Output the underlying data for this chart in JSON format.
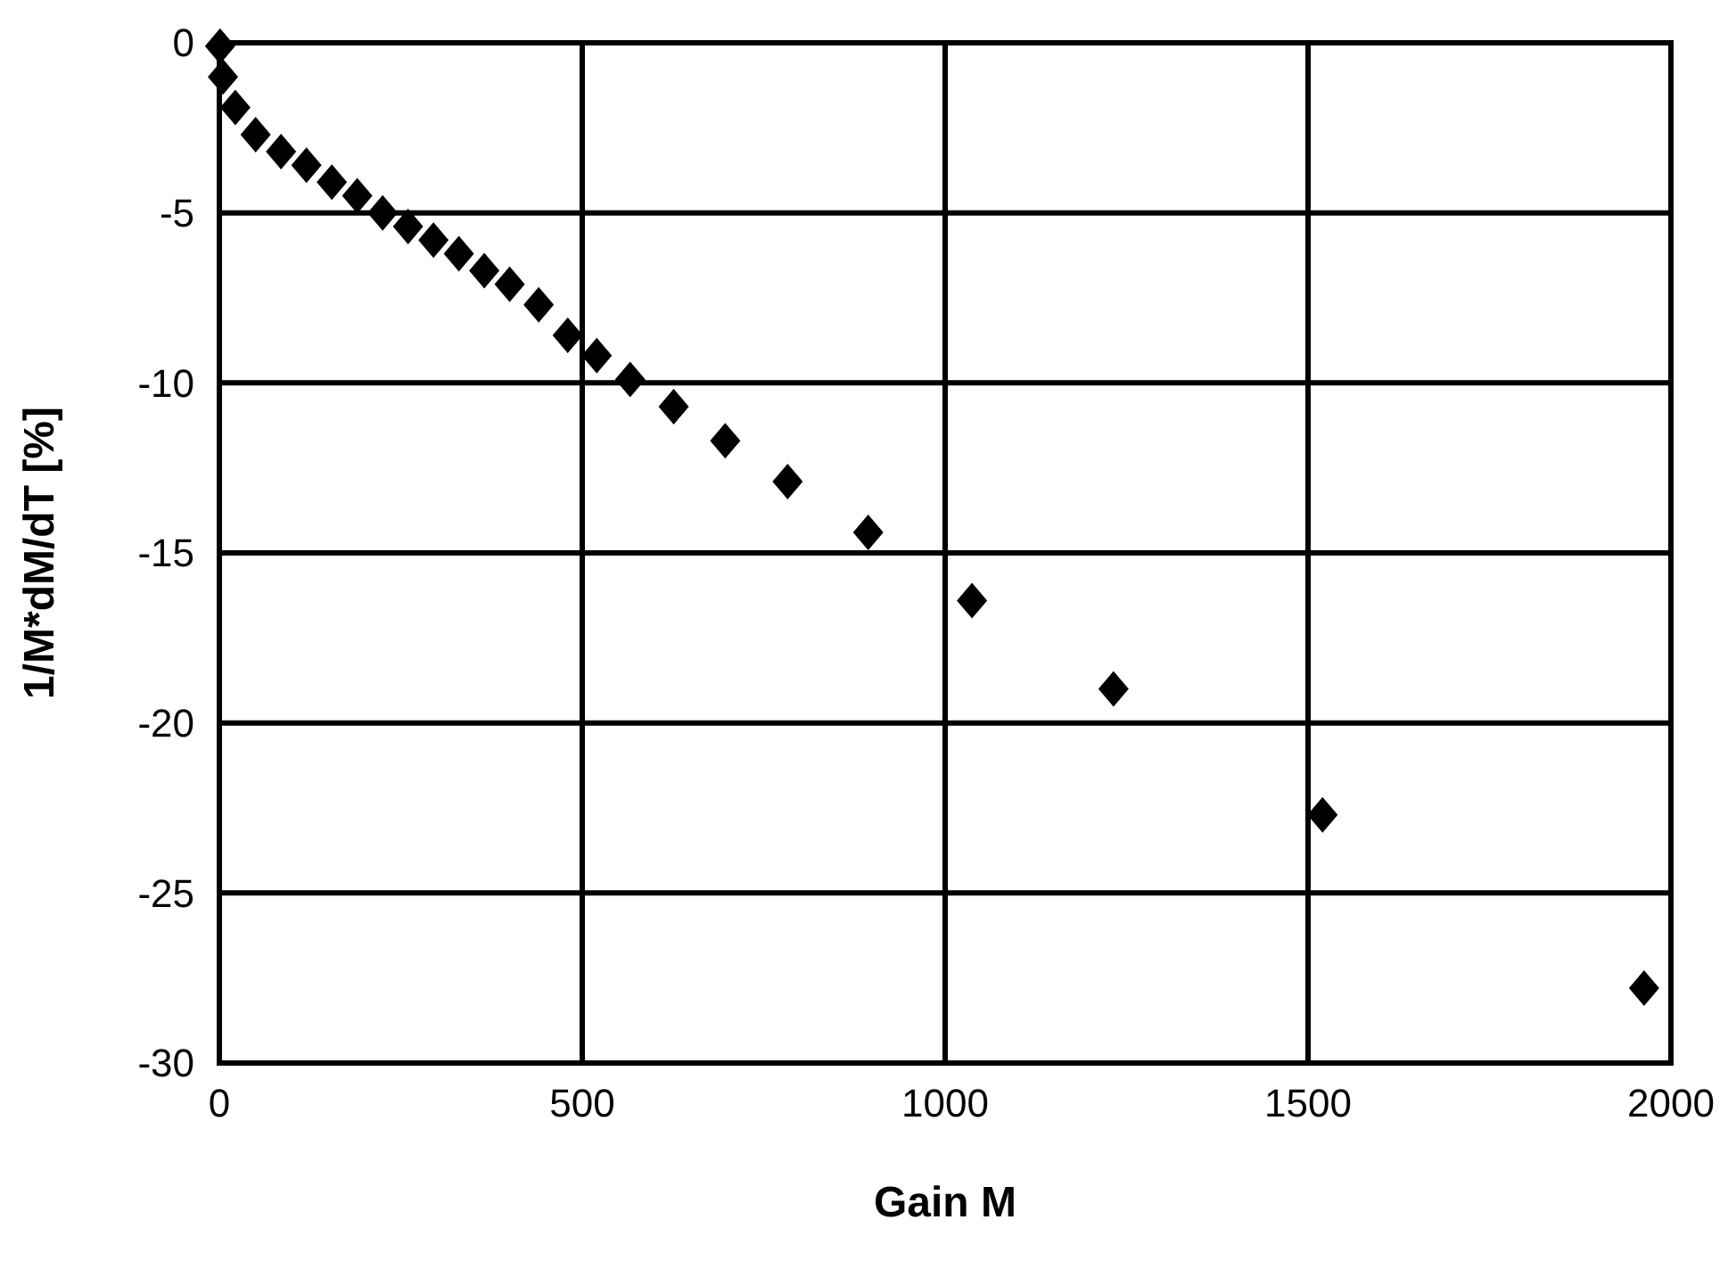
{
  "chart_data": {
    "type": "scatter",
    "xlabel": "Gain M",
    "ylabel": "1/M*dM/dT [%]",
    "marker": "diamond",
    "grid": true,
    "xlim": [
      0,
      2000
    ],
    "xticks": [
      0,
      500,
      1000,
      1500,
      2000
    ],
    "ylim": [
      -30,
      0
    ],
    "yticks": [
      0,
      -5,
      -10,
      -15,
      -20,
      -25,
      -30
    ],
    "series": [
      {
        "color": "#000000",
        "x": [
          1,
          5,
          22,
          50,
          85,
          120,
          155,
          190,
          225,
          260,
          295,
          330,
          365,
          400,
          440,
          480,
          520,
          566,
          626,
          697,
          783,
          894,
          1037,
          1232,
          1520,
          1963
        ],
        "values": [
          -0.1,
          -1.0,
          -1.9,
          -2.7,
          -3.2,
          -3.6,
          -4.1,
          -4.5,
          -5.0,
          -5.4,
          -5.8,
          -6.2,
          -6.7,
          -7.1,
          -7.7,
          -8.6,
          -9.2,
          -9.9,
          -10.7,
          -11.7,
          -12.9,
          -14.4,
          -16.4,
          -19.0,
          -22.7,
          -27.8
        ]
      }
    ]
  }
}
